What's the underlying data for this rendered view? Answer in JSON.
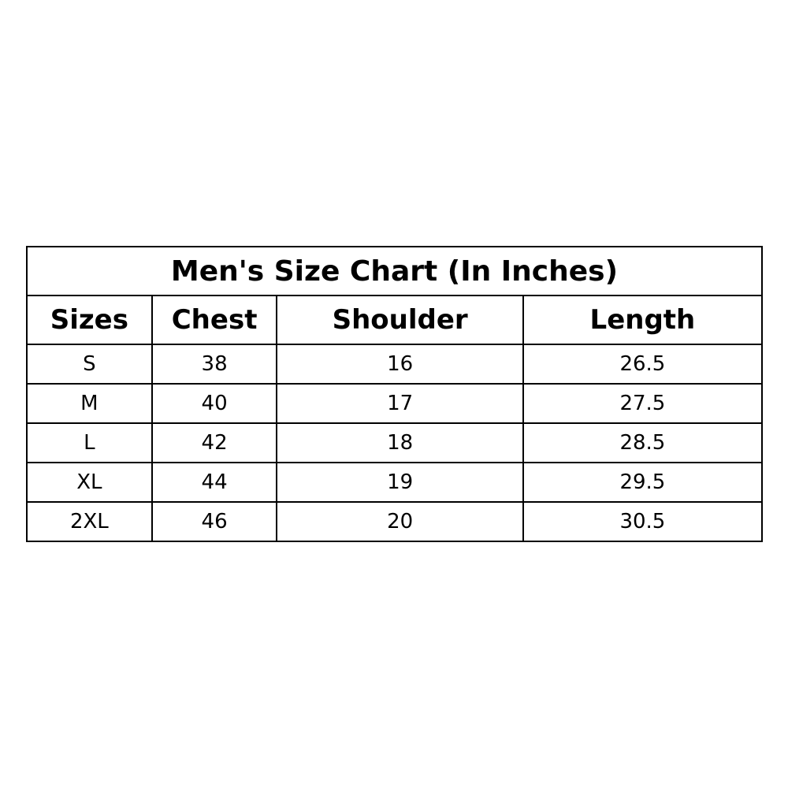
{
  "title": "Men's  Size Chart (In Inches)",
  "headers": [
    "Sizes",
    "Chest",
    "Shoulder",
    "Length"
  ],
  "rows": [
    [
      "S",
      "38",
      "16",
      "26.5"
    ],
    [
      "M",
      "40",
      "17",
      "27.5"
    ],
    [
      "L",
      "42",
      "18",
      "28.5"
    ],
    [
      "XL",
      "44",
      "19",
      "29.5"
    ],
    [
      "2XL",
      "46",
      "20",
      "30.5"
    ]
  ]
}
